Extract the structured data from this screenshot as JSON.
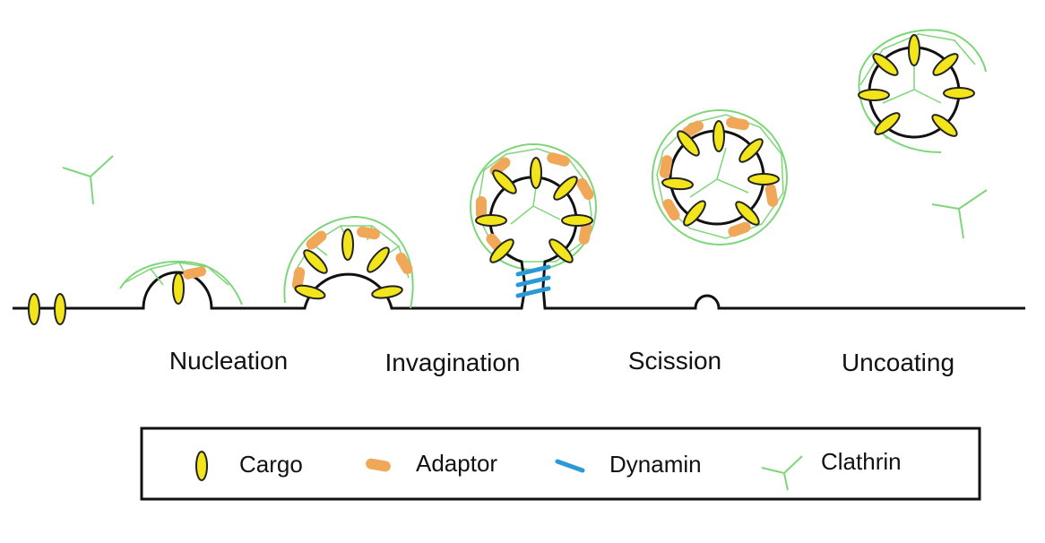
{
  "stages": [
    "Nucleation",
    "Invagination",
    "Scission",
    "Uncoating"
  ],
  "legend": {
    "cargo": "Cargo",
    "adaptor": "Adaptor",
    "dynamin": "Dynamin",
    "clathrin": "Clathrin"
  },
  "colors": {
    "membrane": "#111111",
    "cargo_fill": "#f2e51c",
    "cargo_stroke": "#222222",
    "adaptor": "#f0a858",
    "dynamin": "#2a9ad6",
    "clathrin": "#7fd67a"
  }
}
